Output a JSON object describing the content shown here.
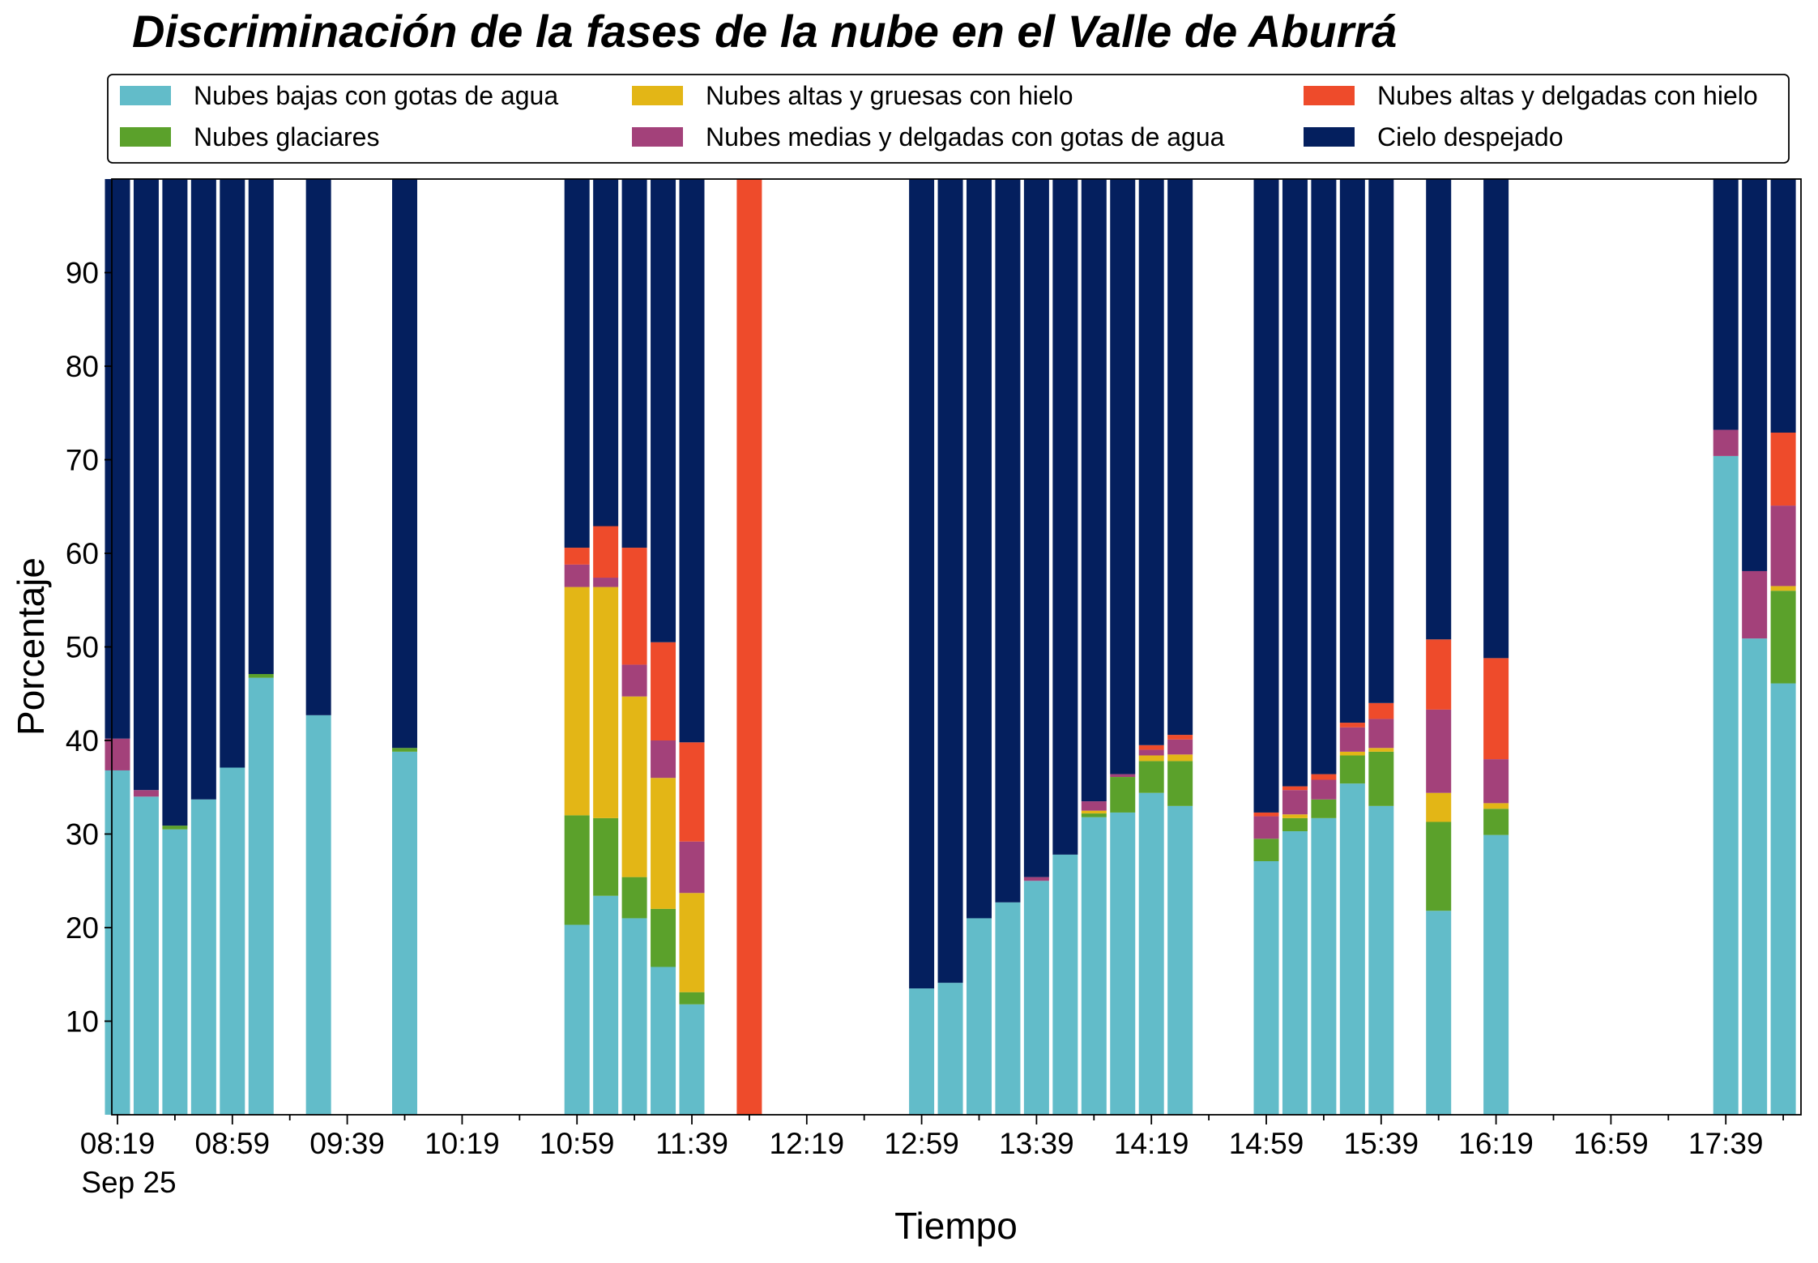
{
  "colors": {
    "low_water": "#62bcc9",
    "glacial": "#5ba12b",
    "high_thick_ice": "#e3b616",
    "mid_thin_water": "#a3417a",
    "high_thin_ice": "#ee4b2b",
    "clear_sky": "#041f5e"
  },
  "chart_data": {
    "type": "bar",
    "stacked": true,
    "title": "Discriminación de la fases de la nube en el Valle de Aburrá",
    "xlabel": "Tiempo",
    "ylabel": "Porcentaje",
    "ylim": [
      0,
      100
    ],
    "yticks": [
      10,
      20,
      30,
      40,
      50,
      60,
      70,
      80,
      90
    ],
    "xtick_labels": [
      "08:19",
      "08:59",
      "09:39",
      "10:19",
      "10:59",
      "11:39",
      "12:19",
      "12:59",
      "13:39",
      "14:19",
      "14:59",
      "15:39",
      "16:19",
      "16:59",
      "17:39"
    ],
    "xtick_sublabel": "Sep 25",
    "legend_placement": "top, 3 columns",
    "series": [
      {
        "name": "Nubes bajas con gotas de agua",
        "color_key": "low_water"
      },
      {
        "name": "Nubes glaciares",
        "color_key": "glacial"
      },
      {
        "name": "Nubes altas y gruesas con hielo",
        "color_key": "high_thick_ice"
      },
      {
        "name": "Nubes medias y delgadas con gotas de agua",
        "color_key": "mid_thin_water"
      },
      {
        "name": "Nubes altas y delgadas con hielo",
        "color_key": "high_thin_ice"
      },
      {
        "name": "Cielo despejado",
        "color_key": "clear_sky"
      }
    ],
    "bars": [
      {
        "time": "08:19",
        "values": [
          36.8,
          0,
          0,
          3.4,
          0,
          59.8
        ]
      },
      {
        "time": "08:29",
        "values": [
          34.0,
          0,
          0,
          0.7,
          0,
          65.3
        ]
      },
      {
        "time": "08:39",
        "values": [
          30.5,
          0.4,
          0,
          0,
          0,
          69.1
        ]
      },
      {
        "time": "08:49",
        "values": [
          33.7,
          0,
          0,
          0,
          0,
          66.3
        ]
      },
      {
        "time": "08:59",
        "values": [
          37.1,
          0,
          0,
          0,
          0,
          62.9
        ]
      },
      {
        "time": "09:09",
        "values": [
          46.7,
          0.4,
          0,
          0,
          0,
          52.9
        ]
      },
      {
        "time": "09:29",
        "values": [
          42.7,
          0,
          0,
          0,
          0,
          57.3
        ]
      },
      {
        "time": "09:59",
        "values": [
          38.8,
          0.4,
          0,
          0,
          0,
          60.8
        ]
      },
      {
        "time": "10:59",
        "values": [
          20.3,
          11.7,
          24.4,
          2.4,
          1.8,
          39.4
        ]
      },
      {
        "time": "11:09",
        "values": [
          23.4,
          8.3,
          24.7,
          1.0,
          5.5,
          37.1
        ]
      },
      {
        "time": "11:19",
        "values": [
          21.0,
          4.4,
          19.3,
          3.4,
          12.5,
          39.4
        ]
      },
      {
        "time": "11:29",
        "values": [
          15.8,
          6.2,
          14.0,
          4.0,
          10.5,
          49.5
        ]
      },
      {
        "time": "11:39",
        "values": [
          11.8,
          1.3,
          10.6,
          5.5,
          10.6,
          60.2
        ]
      },
      {
        "time": "11:59",
        "values": [
          0,
          0,
          0,
          0,
          100,
          0
        ]
      },
      {
        "time": "12:59",
        "values": [
          13.5,
          0,
          0,
          0,
          0,
          86.5
        ]
      },
      {
        "time": "13:09",
        "values": [
          14.1,
          0,
          0,
          0,
          0,
          85.9
        ]
      },
      {
        "time": "13:19",
        "values": [
          21.0,
          0,
          0,
          0,
          0,
          79.0
        ]
      },
      {
        "time": "13:29",
        "values": [
          22.7,
          0,
          0,
          0,
          0,
          77.3
        ]
      },
      {
        "time": "13:39",
        "values": [
          25.0,
          0,
          0,
          0.4,
          0,
          74.6
        ]
      },
      {
        "time": "13:49",
        "values": [
          27.8,
          0,
          0,
          0,
          0,
          72.2
        ]
      },
      {
        "time": "13:59",
        "values": [
          31.8,
          0.4,
          0.3,
          1.0,
          0,
          66.5
        ]
      },
      {
        "time": "14:09",
        "values": [
          32.3,
          3.8,
          0,
          0.3,
          0,
          63.6
        ]
      },
      {
        "time": "14:19",
        "values": [
          34.4,
          3.4,
          0.6,
          0.6,
          0.5,
          60.5
        ]
      },
      {
        "time": "14:29",
        "values": [
          33.0,
          4.8,
          0.7,
          1.6,
          0.5,
          59.4
        ]
      },
      {
        "time": "14:59",
        "values": [
          27.1,
          2.4,
          0,
          2.4,
          0.4,
          67.7
        ]
      },
      {
        "time": "15:09",
        "values": [
          30.3,
          1.4,
          0.4,
          2.6,
          0.4,
          64.9
        ]
      },
      {
        "time": "15:19",
        "values": [
          31.7,
          2.0,
          0,
          2.1,
          0.6,
          63.6
        ]
      },
      {
        "time": "15:29",
        "values": [
          35.4,
          3.0,
          0.4,
          2.6,
          0.5,
          58.1
        ]
      },
      {
        "time": "15:39",
        "values": [
          33.0,
          5.8,
          0.4,
          3.1,
          1.7,
          56.0
        ]
      },
      {
        "time": "15:59",
        "values": [
          21.8,
          9.5,
          3.1,
          8.9,
          7.5,
          49.2
        ]
      },
      {
        "time": "16:19",
        "values": [
          29.9,
          2.8,
          0.6,
          4.7,
          10.8,
          51.2
        ]
      },
      {
        "time": "17:39",
        "values": [
          70.4,
          0,
          0,
          2.8,
          0,
          26.8
        ]
      },
      {
        "time": "17:49",
        "values": [
          50.9,
          0,
          0,
          7.2,
          0,
          41.9
        ]
      },
      {
        "time": "17:59",
        "values": [
          46.1,
          9.9,
          0.5,
          8.6,
          7.8,
          27.1
        ]
      }
    ]
  }
}
